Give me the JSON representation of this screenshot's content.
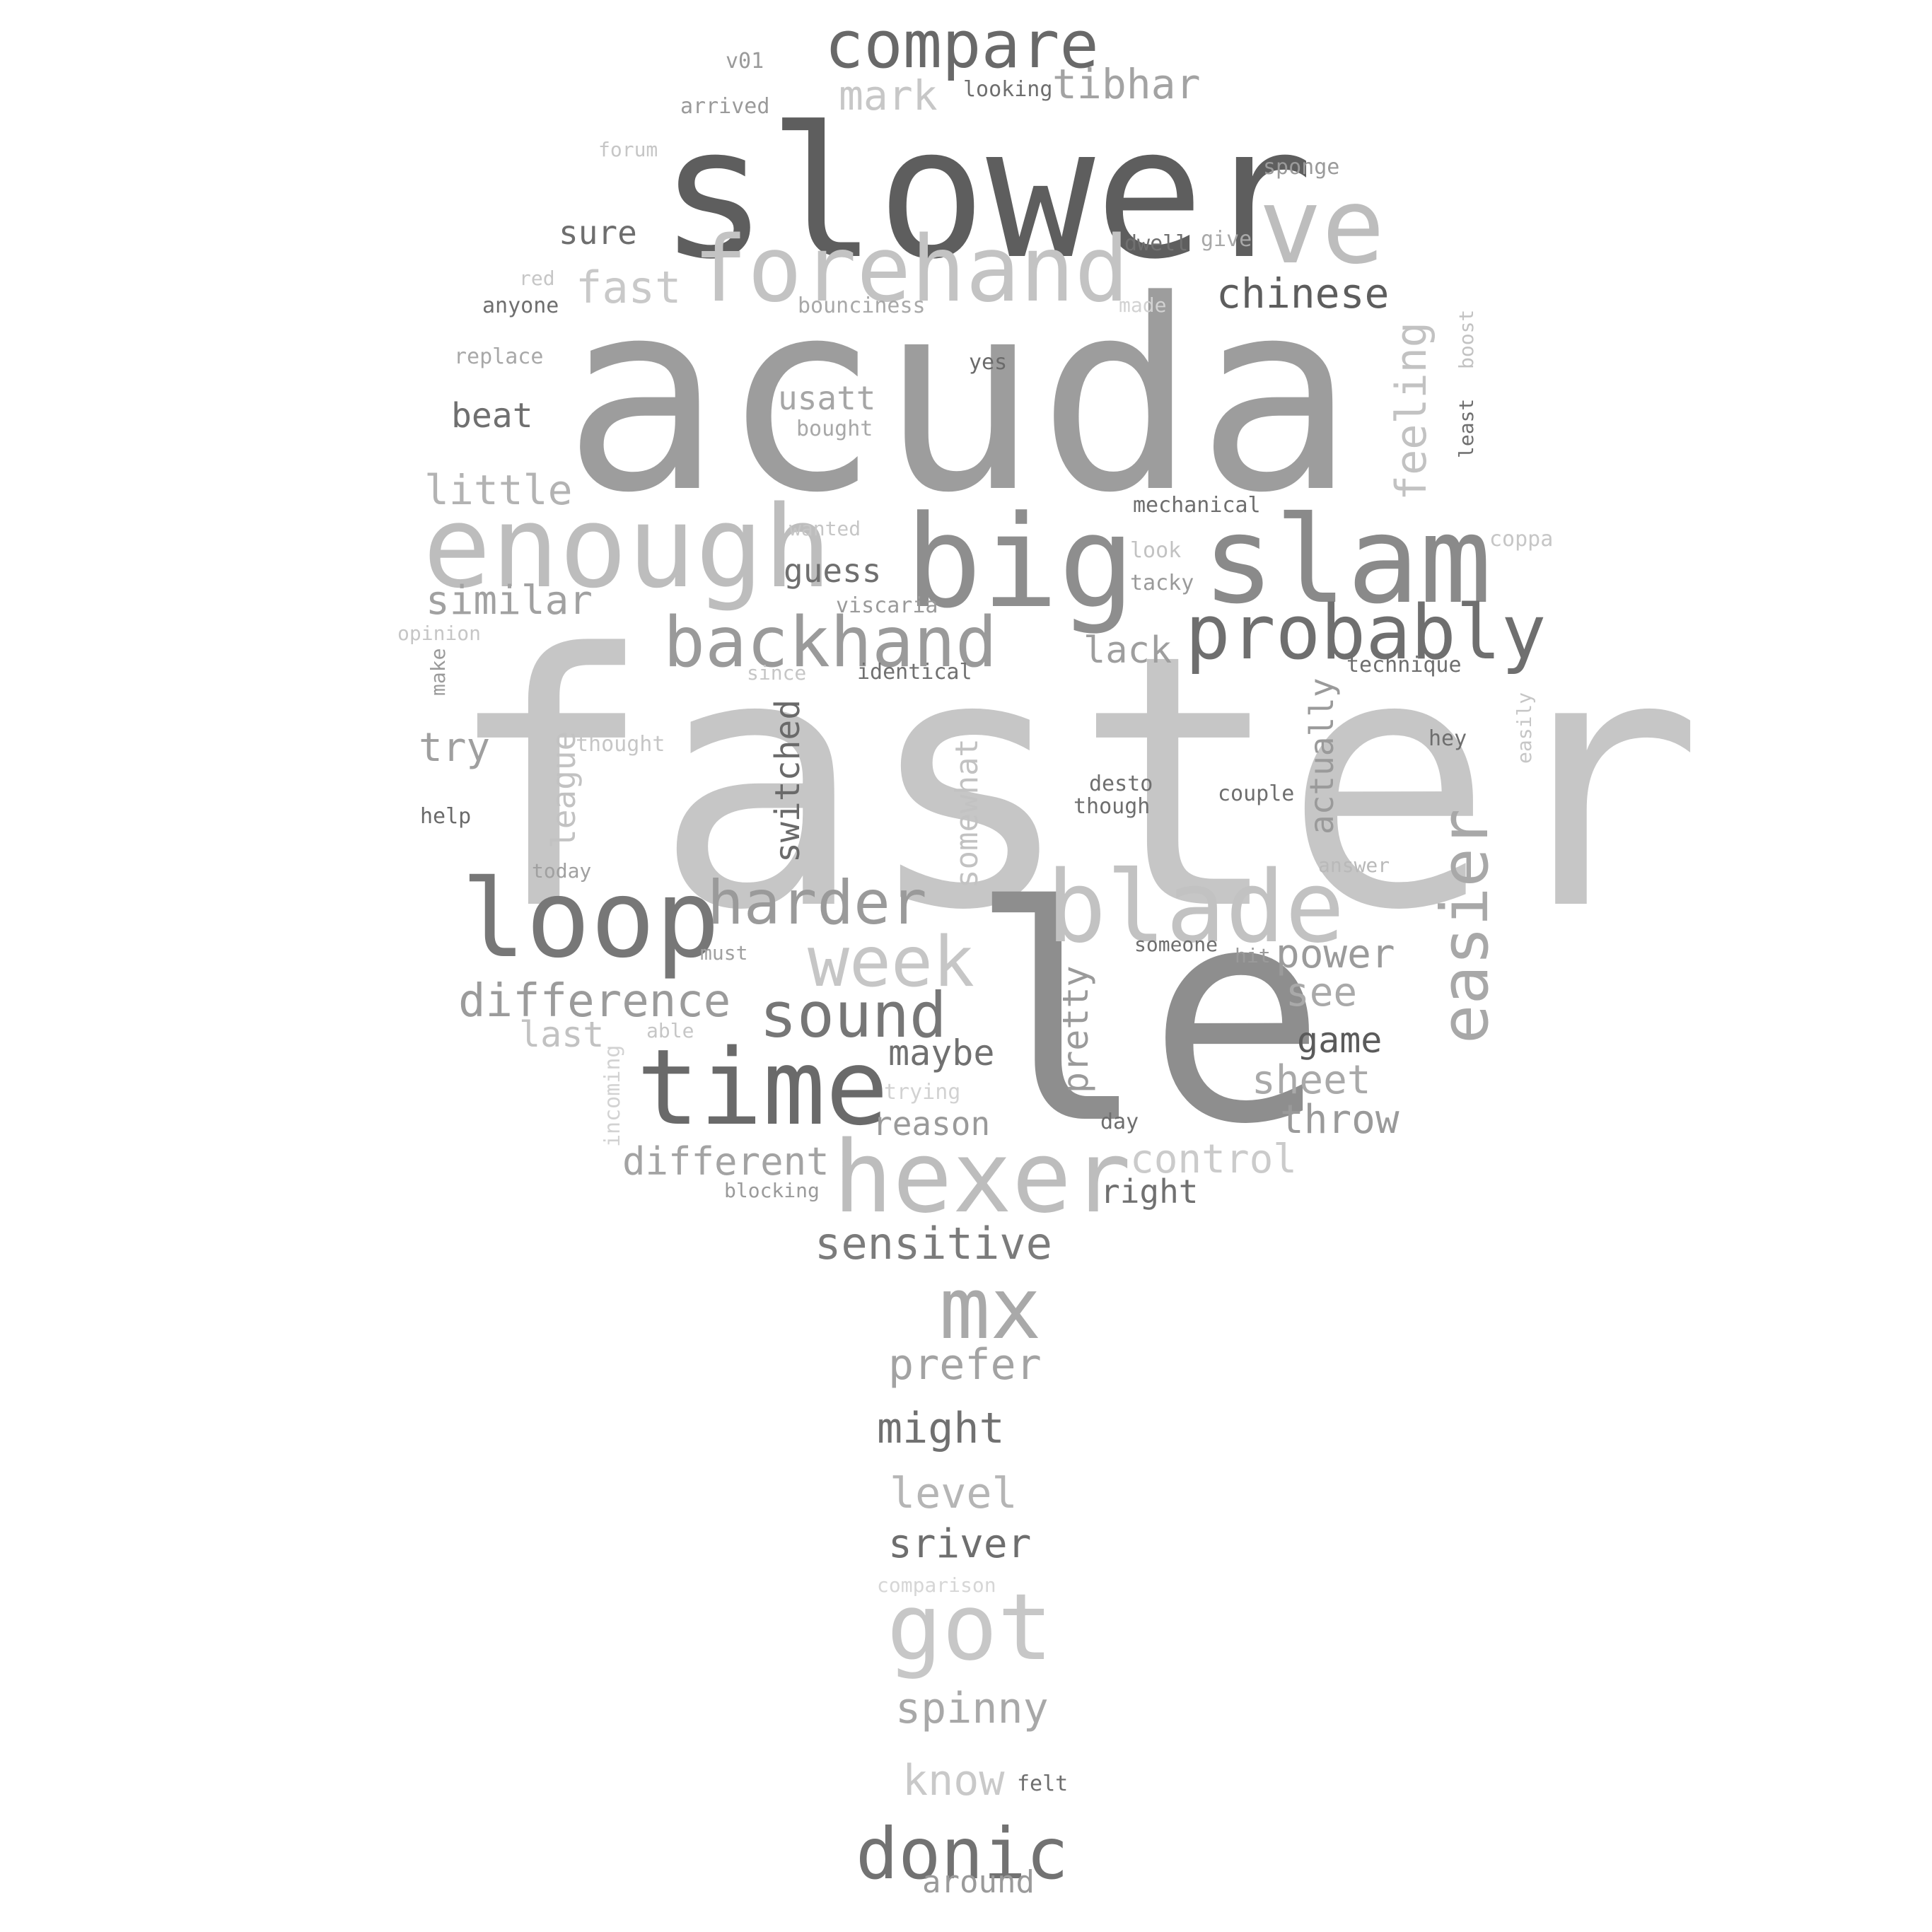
{
  "words": [
    {
      "text": "faster",
      "color": "#c6c6c6"
    },
    {
      "text": "acuda",
      "color": "#9d9d9d"
    },
    {
      "text": "le",
      "color": "#8e8e8e"
    },
    {
      "text": "slower",
      "color": "#5e5e5e"
    },
    {
      "text": "slam",
      "color": "#8a8a8a"
    },
    {
      "text": "big",
      "color": "#8e8e8e"
    },
    {
      "text": "enough",
      "color": "#bdbdbd"
    },
    {
      "text": "forehand",
      "color": "#c3c3c3"
    },
    {
      "text": "ve",
      "color": "#bdbdbd"
    },
    {
      "text": "compare",
      "color": "#696969"
    },
    {
      "text": "loop",
      "color": "#777777"
    },
    {
      "text": "time",
      "color": "#6a6a6a"
    },
    {
      "text": "hexer",
      "color": "#bdbdbd"
    },
    {
      "text": "blade",
      "color": "#c2c2c2"
    },
    {
      "text": "probably",
      "color": "#6f6f6f"
    },
    {
      "text": "backhand",
      "color": "#9a9a9a"
    },
    {
      "text": "easier",
      "color": "#a8a8a8"
    },
    {
      "text": "mx",
      "color": "#a9a9a9"
    },
    {
      "text": "got",
      "color": "#c7c7c7"
    },
    {
      "text": "donic",
      "color": "#727272"
    },
    {
      "text": "harder",
      "color": "#9a9a9a"
    },
    {
      "text": "week",
      "color": "#c6c6c6"
    },
    {
      "text": "sound",
      "color": "#767676"
    },
    {
      "text": "difference",
      "color": "#9b9b9b"
    },
    {
      "text": "sensitive",
      "color": "#7b7b7b"
    },
    {
      "text": "chinese",
      "color": "#5d5d5d"
    },
    {
      "text": "tibhar",
      "color": "#a3a3a3"
    },
    {
      "text": "mark",
      "color": "#c7c7c7"
    },
    {
      "text": "fast",
      "color": "#c9c9c9"
    },
    {
      "text": "sure",
      "color": "#6e6e6e"
    },
    {
      "text": "beat",
      "color": "#6f6f6f"
    },
    {
      "text": "little",
      "color": "#b3b3b3"
    },
    {
      "text": "similar",
      "color": "#a1a1a1"
    },
    {
      "text": "try",
      "color": "#9f9f9f"
    },
    {
      "text": "usatt",
      "color": "#a6a6a6"
    },
    {
      "text": "guess",
      "color": "#6f6f6f"
    },
    {
      "text": "lack",
      "color": "#9e9e9e"
    },
    {
      "text": "power",
      "color": "#9b9b9b"
    },
    {
      "text": "see",
      "color": "#a9a9a9"
    },
    {
      "text": "game",
      "color": "#5b5b5b"
    },
    {
      "text": "sheet",
      "color": "#a9a9a9"
    },
    {
      "text": "throw",
      "color": "#9a9a9a"
    },
    {
      "text": "control",
      "color": "#cbcbcb"
    },
    {
      "text": "right",
      "color": "#707070"
    },
    {
      "text": "maybe",
      "color": "#707070"
    },
    {
      "text": "reason",
      "color": "#9a9a9a"
    },
    {
      "text": "different",
      "color": "#a3a3a3"
    },
    {
      "text": "last",
      "color": "#c2c2c2"
    },
    {
      "text": "prefer",
      "color": "#a3a3a3"
    },
    {
      "text": "might",
      "color": "#707070"
    },
    {
      "text": "level",
      "color": "#b5b5b5"
    },
    {
      "text": "sriver",
      "color": "#6e6e6e"
    },
    {
      "text": "spinny",
      "color": "#a8a8a8"
    },
    {
      "text": "know",
      "color": "#c9c9c9"
    },
    {
      "text": "felt",
      "color": "#6e6e6e"
    },
    {
      "text": "around",
      "color": "#9a9a9a"
    },
    {
      "text": "comparison",
      "color": "#d6d6d6"
    },
    {
      "text": "trying",
      "color": "#d2d2d2"
    },
    {
      "text": "blocking",
      "color": "#9a9a9a"
    },
    {
      "text": "day",
      "color": "#6e6e6e"
    },
    {
      "text": "able",
      "color": "#c6c6c6"
    },
    {
      "text": "must",
      "color": "#a0a0a0"
    },
    {
      "text": "someone",
      "color": "#6e6e6e"
    },
    {
      "text": "hit",
      "color": "#9a9a9a"
    },
    {
      "text": "today",
      "color": "#a0a0a0"
    },
    {
      "text": "help",
      "color": "#6a6a6a"
    },
    {
      "text": "thought",
      "color": "#c6c6c6"
    },
    {
      "text": "desto",
      "color": "#6e6e6e"
    },
    {
      "text": "though",
      "color": "#6e6e6e"
    },
    {
      "text": "couple",
      "color": "#6e6e6e"
    },
    {
      "text": "answer",
      "color": "#b9b9b9"
    },
    {
      "text": "hey",
      "color": "#6e6e6e"
    },
    {
      "text": "technique",
      "color": "#6e6e6e"
    },
    {
      "text": "opinion",
      "color": "#c6c6c6"
    },
    {
      "text": "since",
      "color": "#c6c6c6"
    },
    {
      "text": "identical",
      "color": "#707070"
    },
    {
      "text": "viscaria",
      "color": "#9a9a9a"
    },
    {
      "text": "tacky",
      "color": "#9a9a9a"
    },
    {
      "text": "look",
      "color": "#c2c2c2"
    },
    {
      "text": "coppa",
      "color": "#c6c6c6"
    },
    {
      "text": "wanted",
      "color": "#c6c6c6"
    },
    {
      "text": "mechanical",
      "color": "#6e6e6e"
    },
    {
      "text": "bought",
      "color": "#a8a8a8"
    },
    {
      "text": "yes",
      "color": "#6a6a6a"
    },
    {
      "text": "replace",
      "color": "#a8a8a8"
    },
    {
      "text": "anyone",
      "color": "#6e6e6e"
    },
    {
      "text": "red",
      "color": "#c6c6c6"
    },
    {
      "text": "bounciness",
      "color": "#a8a8a8"
    },
    {
      "text": "made",
      "color": "#d2d2d2"
    },
    {
      "text": "dwell",
      "color": "#707070"
    },
    {
      "text": "give",
      "color": "#a8a8a8"
    },
    {
      "text": "sponge",
      "color": "#9a9a9a"
    },
    {
      "text": "forum",
      "color": "#c6c6c6"
    },
    {
      "text": "arrived",
      "color": "#9a9a9a"
    },
    {
      "text": "v01",
      "color": "#9a9a9a"
    },
    {
      "text": "looking",
      "color": "#6e6e6e"
    },
    {
      "text": "feeling",
      "color": "#c2c2c2"
    },
    {
      "text": "boost",
      "color": "#c2c2c2"
    },
    {
      "text": "least",
      "color": "#6e6e6e"
    },
    {
      "text": "actually",
      "color": "#9a9a9a"
    },
    {
      "text": "switched",
      "color": "#6a6a6a"
    },
    {
      "text": "somewhat",
      "color": "#c2c2c2"
    },
    {
      "text": "league",
      "color": "#c2c2c2"
    },
    {
      "text": "pretty",
      "color": "#9a9a9a"
    },
    {
      "text": "incoming",
      "color": "#d2d2d2"
    },
    {
      "text": "make",
      "color": "#9a9a9a"
    },
    {
      "text": "easily",
      "color": "#c6c6c6"
    }
  ]
}
